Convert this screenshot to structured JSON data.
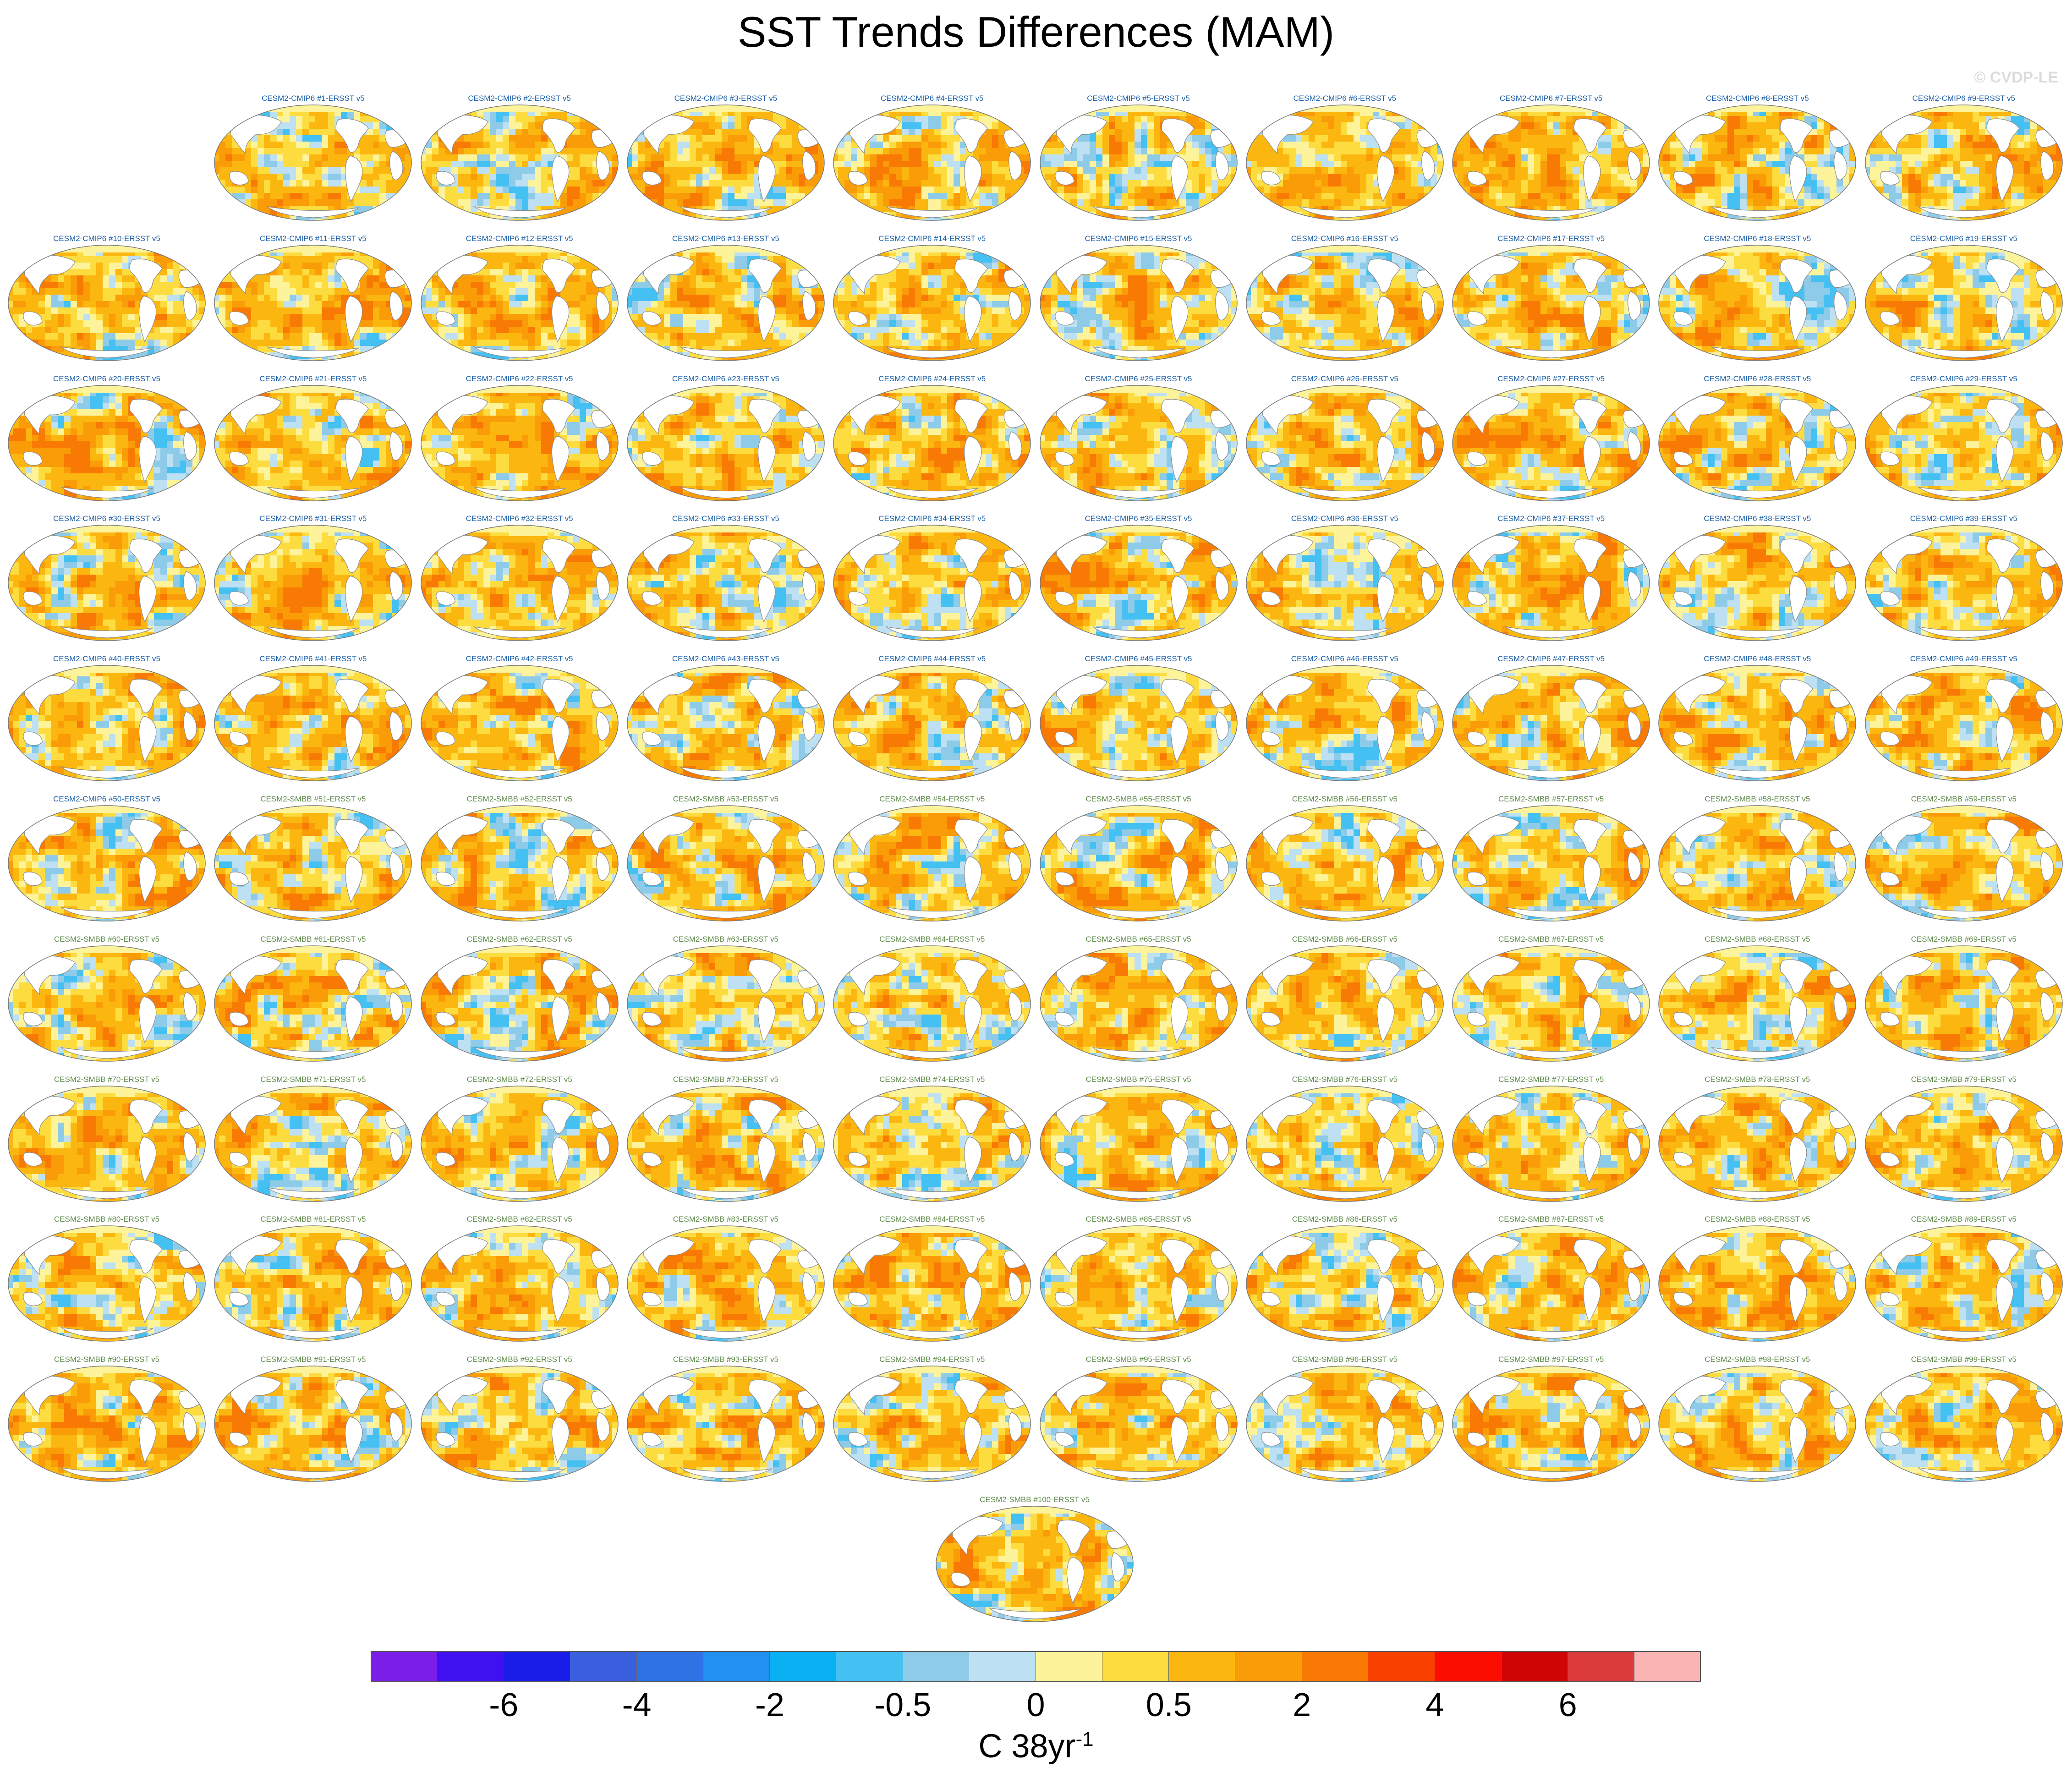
{
  "figure": {
    "title": "SST Trends Differences (MAM)",
    "watermark": "© CVDP-LE",
    "units_base": "C 38yr",
    "units_exponent": "-1"
  },
  "colorbar": {
    "colors": [
      "#7b1fe8",
      "#3f10f0",
      "#1a1de8",
      "#3a5fde",
      "#2f72e6",
      "#2190f0",
      "#0ab0f2",
      "#44c0f2",
      "#8ecbe9",
      "#bde0f3",
      "#fdf39a",
      "#fddc40",
      "#fbb710",
      "#fa9c08",
      "#f87a04",
      "#f84100",
      "#fb0d00",
      "#cf0404",
      "#db3b3b",
      "#fbb4b4"
    ],
    "tick_labels": [
      "-6",
      "-4",
      "-2",
      "-0.5",
      "0",
      "0.5",
      "2",
      "4",
      "6"
    ]
  },
  "panels": [
    {
      "label": "CESM2-CMIP6 #1-ERSST v5",
      "color": "#1a5ea8"
    },
    {
      "label": "CESM2-CMIP6 #2-ERSST v5",
      "color": "#1a5ea8"
    },
    {
      "label": "CESM2-CMIP6 #3-ERSST v5",
      "color": "#1a5ea8"
    },
    {
      "label": "CESM2-CMIP6 #4-ERSST v5",
      "color": "#1a5ea8"
    },
    {
      "label": "CESM2-CMIP6 #5-ERSST v5",
      "color": "#1a5ea8"
    },
    {
      "label": "CESM2-CMIP6 #6-ERSST v5",
      "color": "#1a5ea8"
    },
    {
      "label": "CESM2-CMIP6 #7-ERSST v5",
      "color": "#1a5ea8"
    },
    {
      "label": "CESM2-CMIP6 #8-ERSST v5",
      "color": "#1a5ea8"
    },
    {
      "label": "CESM2-CMIP6 #9-ERSST v5",
      "color": "#1a5ea8"
    },
    {
      "label": "CESM2-CMIP6 #10-ERSST v5",
      "color": "#1a5ea8"
    },
    {
      "label": "CESM2-CMIP6 #11-ERSST v5",
      "color": "#1a5ea8"
    },
    {
      "label": "CESM2-CMIP6 #12-ERSST v5",
      "color": "#1a5ea8"
    },
    {
      "label": "CESM2-CMIP6 #13-ERSST v5",
      "color": "#1a5ea8"
    },
    {
      "label": "CESM2-CMIP6 #14-ERSST v5",
      "color": "#1a5ea8"
    },
    {
      "label": "CESM2-CMIP6 #15-ERSST v5",
      "color": "#1a5ea8"
    },
    {
      "label": "CESM2-CMIP6 #16-ERSST v5",
      "color": "#1a5ea8"
    },
    {
      "label": "CESM2-CMIP6 #17-ERSST v5",
      "color": "#1a5ea8"
    },
    {
      "label": "CESM2-CMIP6 #18-ERSST v5",
      "color": "#1a5ea8"
    },
    {
      "label": "CESM2-CMIP6 #19-ERSST v5",
      "color": "#1a5ea8"
    },
    {
      "label": "CESM2-CMIP6 #20-ERSST v5",
      "color": "#1a5ea8"
    },
    {
      "label": "CESM2-CMIP6 #21-ERSST v5",
      "color": "#1a5ea8"
    },
    {
      "label": "CESM2-CMIP6 #22-ERSST v5",
      "color": "#1a5ea8"
    },
    {
      "label": "CESM2-CMIP6 #23-ERSST v5",
      "color": "#1a5ea8"
    },
    {
      "label": "CESM2-CMIP6 #24-ERSST v5",
      "color": "#1a5ea8"
    },
    {
      "label": "CESM2-CMIP6 #25-ERSST v5",
      "color": "#1a5ea8"
    },
    {
      "label": "CESM2-CMIP6 #26-ERSST v5",
      "color": "#1a5ea8"
    },
    {
      "label": "CESM2-CMIP6 #27-ERSST v5",
      "color": "#1a5ea8"
    },
    {
      "label": "CESM2-CMIP6 #28-ERSST v5",
      "color": "#1a5ea8"
    },
    {
      "label": "CESM2-CMIP6 #29-ERSST v5",
      "color": "#1a5ea8"
    },
    {
      "label": "CESM2-CMIP6 #30-ERSST v5",
      "color": "#1a5ea8"
    },
    {
      "label": "CESM2-CMIP6 #31-ERSST v5",
      "color": "#1a5ea8"
    },
    {
      "label": "CESM2-CMIP6 #32-ERSST v5",
      "color": "#1a5ea8"
    },
    {
      "label": "CESM2-CMIP6 #33-ERSST v5",
      "color": "#1a5ea8"
    },
    {
      "label": "CESM2-CMIP6 #34-ERSST v5",
      "color": "#1a5ea8"
    },
    {
      "label": "CESM2-CMIP6 #35-ERSST v5",
      "color": "#1a5ea8"
    },
    {
      "label": "CESM2-CMIP6 #36-ERSST v5",
      "color": "#1a5ea8"
    },
    {
      "label": "CESM2-CMIP6 #37-ERSST v5",
      "color": "#1a5ea8"
    },
    {
      "label": "CESM2-CMIP6 #38-ERSST v5",
      "color": "#1a5ea8"
    },
    {
      "label": "CESM2-CMIP6 #39-ERSST v5",
      "color": "#1a5ea8"
    },
    {
      "label": "CESM2-CMIP6 #40-ERSST v5",
      "color": "#1a5ea8"
    },
    {
      "label": "CESM2-CMIP6 #41-ERSST v5",
      "color": "#1a5ea8"
    },
    {
      "label": "CESM2-CMIP6 #42-ERSST v5",
      "color": "#1a5ea8"
    },
    {
      "label": "CESM2-CMIP6 #43-ERSST v5",
      "color": "#1a5ea8"
    },
    {
      "label": "CESM2-CMIP6 #44-ERSST v5",
      "color": "#1a5ea8"
    },
    {
      "label": "CESM2-CMIP6 #45-ERSST v5",
      "color": "#1a5ea8"
    },
    {
      "label": "CESM2-CMIP6 #46-ERSST v5",
      "color": "#1a5ea8"
    },
    {
      "label": "CESM2-CMIP6 #47-ERSST v5",
      "color": "#1a5ea8"
    },
    {
      "label": "CESM2-CMIP6 #48-ERSST v5",
      "color": "#1a5ea8"
    },
    {
      "label": "CESM2-CMIP6 #49-ERSST v5",
      "color": "#1a5ea8"
    },
    {
      "label": "CESM2-CMIP6 #50-ERSST v5",
      "color": "#1a5ea8"
    },
    {
      "label": "CESM2-SMBB #51-ERSST v5",
      "color": "#5f8a4a"
    },
    {
      "label": "CESM2-SMBB #52-ERSST v5",
      "color": "#5f8a4a"
    },
    {
      "label": "CESM2-SMBB #53-ERSST v5",
      "color": "#5f8a4a"
    },
    {
      "label": "CESM2-SMBB #54-ERSST v5",
      "color": "#5f8a4a"
    },
    {
      "label": "CESM2-SMBB #55-ERSST v5",
      "color": "#5f8a4a"
    },
    {
      "label": "CESM2-SMBB #56-ERSST v5",
      "color": "#5f8a4a"
    },
    {
      "label": "CESM2-SMBB #57-ERSST v5",
      "color": "#5f8a4a"
    },
    {
      "label": "CESM2-SMBB #58-ERSST v5",
      "color": "#5f8a4a"
    },
    {
      "label": "CESM2-SMBB #59-ERSST v5",
      "color": "#5f8a4a"
    },
    {
      "label": "CESM2-SMBB #60-ERSST v5",
      "color": "#5f8a4a"
    },
    {
      "label": "CESM2-SMBB #61-ERSST v5",
      "color": "#5f8a4a"
    },
    {
      "label": "CESM2-SMBB #62-ERSST v5",
      "color": "#5f8a4a"
    },
    {
      "label": "CESM2-SMBB #63-ERSST v5",
      "color": "#5f8a4a"
    },
    {
      "label": "CESM2-SMBB #64-ERSST v5",
      "color": "#5f8a4a"
    },
    {
      "label": "CESM2-SMBB #65-ERSST v5",
      "color": "#5f8a4a"
    },
    {
      "label": "CESM2-SMBB #66-ERSST v5",
      "color": "#5f8a4a"
    },
    {
      "label": "CESM2-SMBB #67-ERSST v5",
      "color": "#5f8a4a"
    },
    {
      "label": "CESM2-SMBB #68-ERSST v5",
      "color": "#5f8a4a"
    },
    {
      "label": "CESM2-SMBB #69-ERSST v5",
      "color": "#5f8a4a"
    },
    {
      "label": "CESM2-SMBB #70-ERSST v5",
      "color": "#5f8a4a"
    },
    {
      "label": "CESM2-SMBB #71-ERSST v5",
      "color": "#5f8a4a"
    },
    {
      "label": "CESM2-SMBB #72-ERSST v5",
      "color": "#5f8a4a"
    },
    {
      "label": "CESM2-SMBB #73-ERSST v5",
      "color": "#5f8a4a"
    },
    {
      "label": "CESM2-SMBB #74-ERSST v5",
      "color": "#5f8a4a"
    },
    {
      "label": "CESM2-SMBB #75-ERSST v5",
      "color": "#5f8a4a"
    },
    {
      "label": "CESM2-SMBB #76-ERSST v5",
      "color": "#5f8a4a"
    },
    {
      "label": "CESM2-SMBB #77-ERSST v5",
      "color": "#5f8a4a"
    },
    {
      "label": "CESM2-SMBB #78-ERSST v5",
      "color": "#5f8a4a"
    },
    {
      "label": "CESM2-SMBB #79-ERSST v5",
      "color": "#5f8a4a"
    },
    {
      "label": "CESM2-SMBB #80-ERSST v5",
      "color": "#5f8a4a"
    },
    {
      "label": "CESM2-SMBB #81-ERSST v5",
      "color": "#5f8a4a"
    },
    {
      "label": "CESM2-SMBB #82-ERSST v5",
      "color": "#5f8a4a"
    },
    {
      "label": "CESM2-SMBB #83-ERSST v5",
      "color": "#5f8a4a"
    },
    {
      "label": "CESM2-SMBB #84-ERSST v5",
      "color": "#5f8a4a"
    },
    {
      "label": "CESM2-SMBB #85-ERSST v5",
      "color": "#5f8a4a"
    },
    {
      "label": "CESM2-SMBB #86-ERSST v5",
      "color": "#5f8a4a"
    },
    {
      "label": "CESM2-SMBB #87-ERSST v5",
      "color": "#5f8a4a"
    },
    {
      "label": "CESM2-SMBB #88-ERSST v5",
      "color": "#5f8a4a"
    },
    {
      "label": "CESM2-SMBB #89-ERSST v5",
      "color": "#5f8a4a"
    },
    {
      "label": "CESM2-SMBB #90-ERSST v5",
      "color": "#5f8a4a"
    },
    {
      "label": "CESM2-SMBB #91-ERSST v5",
      "color": "#5f8a4a"
    },
    {
      "label": "CESM2-SMBB #92-ERSST v5",
      "color": "#5f8a4a"
    },
    {
      "label": "CESM2-SMBB #93-ERSST v5",
      "color": "#5f8a4a"
    },
    {
      "label": "CESM2-SMBB #94-ERSST v5",
      "color": "#5f8a4a"
    },
    {
      "label": "CESM2-SMBB #95-ERSST v5",
      "color": "#5f8a4a"
    },
    {
      "label": "CESM2-SMBB #96-ERSST v5",
      "color": "#5f8a4a"
    },
    {
      "label": "CESM2-SMBB #97-ERSST v5",
      "color": "#5f8a4a"
    },
    {
      "label": "CESM2-SMBB #98-ERSST v5",
      "color": "#5f8a4a"
    },
    {
      "label": "CESM2-SMBB #99-ERSST v5",
      "color": "#5f8a4a"
    },
    {
      "label": "CESM2-SMBB #100-ERSST v5",
      "color": "#5f8a4a"
    }
  ]
}
